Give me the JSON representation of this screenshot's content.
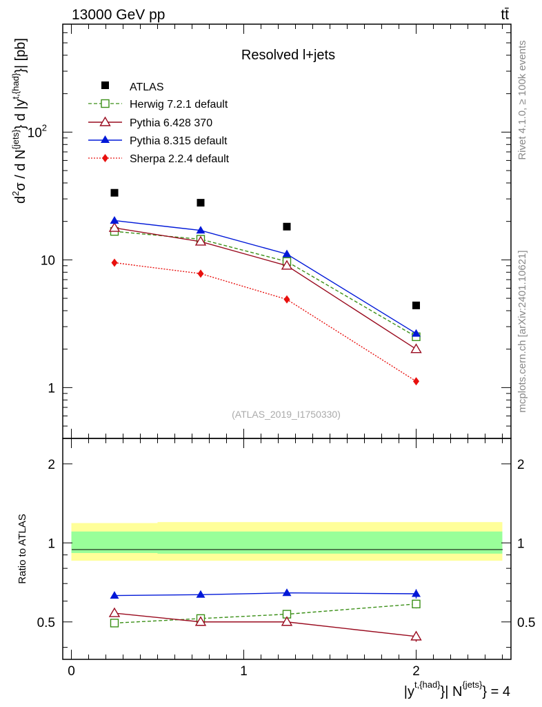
{
  "header": {
    "energy_label": "13000 GeV pp",
    "process_label": "tt̄"
  },
  "side_labels": {
    "rivet": "Rivet 4.1.0, ≥ 100k events",
    "mcplots": "mcplots.cern.ch [arXiv:2401.10621]"
  },
  "colors": {
    "atlas": "#000000",
    "herwig": "#3a8f16",
    "pythia6": "#990a1e",
    "pythia8": "#0018d8",
    "sherpa": "#e8100e",
    "band_outer": "#ffff99",
    "band_inner": "#99ff99"
  },
  "chart_data": [
    {
      "type": "scatter",
      "panel": "main",
      "title": "Resolved l+jets",
      "watermark": "(ATLAS_2019_I1750330)",
      "ylabel": {
        "base": "d",
        "sup1": "2",
        "mid1": "σ / d N",
        "sup2": "{jets}",
        "mid2": "} d |y",
        "sup3": "t,{had}",
        "end": "}| [pb]"
      },
      "yscale": "log",
      "ylim": [
        0.4,
        700
      ],
      "xlim": [
        -0.05,
        2.55
      ],
      "ytick_labels": [
        {
          "value": 1,
          "label": "1"
        },
        {
          "value": 10,
          "label": "10"
        },
        {
          "value": 100,
          "label": "10",
          "sup": "2"
        }
      ],
      "legend_position": "top-left",
      "series": [
        {
          "name": "ATLAS",
          "key": "atlas",
          "marker": "square-filled",
          "line": "none",
          "x": [
            0.25,
            0.75,
            1.25,
            2.0
          ],
          "y": [
            33.5,
            28.0,
            18.2,
            4.4
          ]
        },
        {
          "name": "Herwig 7.2.1 default",
          "key": "herwig",
          "marker": "square-open",
          "line": "dashed",
          "x": [
            0.25,
            0.75,
            1.25,
            2.0
          ],
          "y": [
            16.7,
            14.5,
            9.7,
            2.5
          ]
        },
        {
          "name": "Pythia 6.428 370",
          "key": "pythia6",
          "marker": "triangle-open",
          "line": "solid",
          "x": [
            0.25,
            0.75,
            1.25,
            2.0
          ],
          "y": [
            17.8,
            13.9,
            9.0,
            2.0
          ]
        },
        {
          "name": "Pythia 8.315 default",
          "key": "pythia8",
          "marker": "triangle-filled",
          "line": "solid",
          "x": [
            0.25,
            0.75,
            1.25,
            2.0
          ],
          "y": [
            20.3,
            17.0,
            11.1,
            2.65
          ]
        },
        {
          "name": "Sherpa 2.2.4 default",
          "key": "sherpa",
          "marker": "diamond-filled",
          "line": "dotted",
          "x": [
            0.25,
            0.75,
            1.25,
            2.0
          ],
          "y": [
            9.5,
            7.8,
            4.9,
            1.12
          ]
        }
      ]
    },
    {
      "type": "scatter",
      "panel": "ratio",
      "ylabel": "Ratio to ATLAS",
      "yscale": "log",
      "ylim": [
        0.36,
        2.5
      ],
      "xlim": [
        -0.05,
        2.55
      ],
      "ytick_labels": [
        {
          "value": 0.5,
          "label": "0.5"
        },
        {
          "value": 1,
          "label": "1"
        },
        {
          "value": 2,
          "label": "2"
        }
      ],
      "xtick_labels": [
        {
          "value": 0,
          "label": "0"
        },
        {
          "value": 1,
          "label": "1"
        },
        {
          "value": 2,
          "label": "2"
        }
      ],
      "xlabel": {
        "pre": "|y",
        "sup1": "t,{had}",
        "mid": "}| N",
        "sup2": "{jets}",
        "end": "} = 4"
      },
      "bands": [
        {
          "x0": 0.0,
          "x1": 0.5,
          "outer": [
            0.855,
            1.19
          ],
          "inner": [
            0.915,
            1.105
          ]
        },
        {
          "x0": 0.5,
          "x1": 1.5,
          "outer": [
            0.855,
            1.2
          ],
          "inner": [
            0.91,
            1.105
          ]
        },
        {
          "x0": 1.5,
          "x1": 2.5,
          "outer": [
            0.855,
            1.2
          ],
          "inner": [
            0.91,
            1.105
          ]
        }
      ],
      "series": [
        {
          "key": "herwig",
          "marker": "square-open",
          "line": "dashed",
          "x": [
            0.25,
            0.75,
            1.25,
            2.0
          ],
          "y": [
            0.495,
            0.515,
            0.535,
            0.585
          ],
          "err": [
            0.006,
            0.006,
            0.007,
            0.022
          ]
        },
        {
          "key": "pythia6",
          "marker": "triangle-open",
          "line": "solid",
          "x": [
            0.25,
            0.75,
            1.25,
            2.0
          ],
          "y": [
            0.54,
            0.5,
            0.5,
            0.44
          ],
          "err": [
            0.006,
            0.006,
            0.007,
            0.02
          ]
        },
        {
          "key": "pythia8",
          "marker": "triangle-filled",
          "line": "solid",
          "x": [
            0.25,
            0.75,
            1.25,
            2.0
          ],
          "y": [
            0.63,
            0.635,
            0.645,
            0.64
          ],
          "err": [
            0.006,
            0.012,
            0.016,
            0.026
          ]
        }
      ]
    }
  ]
}
